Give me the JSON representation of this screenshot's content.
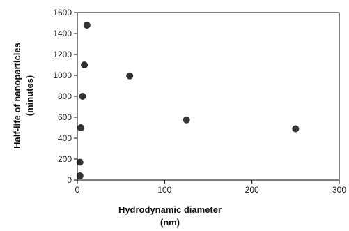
{
  "chart_data": {
    "type": "scatter",
    "title": "",
    "xlabel": "Hydrodynamic diameter",
    "xlabel_unit": "(nm)",
    "ylabel": "Half-life of nanoparticles",
    "ylabel_unit": "(minutes)",
    "xlim": [
      0,
      300
    ],
    "ylim": [
      0,
      1600
    ],
    "xticks": [
      0,
      100,
      200,
      300
    ],
    "yticks": [
      0,
      200,
      400,
      600,
      800,
      1000,
      1200,
      1400,
      1600
    ],
    "grid": false,
    "legend": "none",
    "colors": {
      "marker": "#333333",
      "axis": "#000000",
      "text": "#222222"
    },
    "points": [
      {
        "x": 3,
        "y": 40
      },
      {
        "x": 3,
        "y": 170
      },
      {
        "x": 4,
        "y": 500
      },
      {
        "x": 6,
        "y": 800
      },
      {
        "x": 8,
        "y": 1100
      },
      {
        "x": 11,
        "y": 1480
      },
      {
        "x": 60,
        "y": 995
      },
      {
        "x": 125,
        "y": 575
      },
      {
        "x": 250,
        "y": 490
      }
    ]
  }
}
